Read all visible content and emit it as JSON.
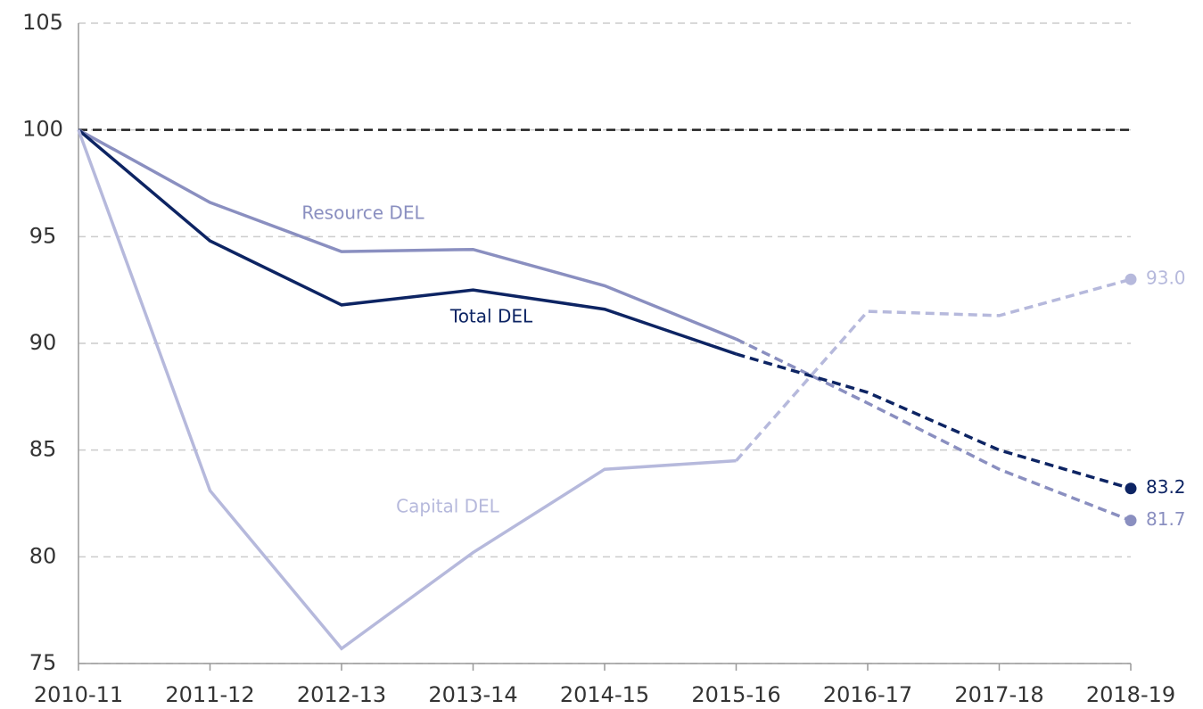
{
  "chart_data": {
    "type": "line",
    "categories": [
      "2010-11",
      "2011-12",
      "2012-13",
      "2013-14",
      "2014-15",
      "2015-16",
      "2016-17",
      "2017-18",
      "2018-19"
    ],
    "series": [
      {
        "name": "Resource DEL",
        "color": "#8a8fc0",
        "values": [
          100,
          96.6,
          94.3,
          94.4,
          92.7,
          90.2,
          87.2,
          84.1,
          81.7
        ],
        "value_labels": [
          null,
          null,
          null,
          null,
          null,
          null,
          null,
          null,
          "81.7"
        ]
      },
      {
        "name": "Total DEL",
        "color": "#0d2463",
        "values": [
          100,
          94.8,
          91.8,
          92.5,
          91.6,
          89.5,
          87.7,
          85.0,
          83.2
        ],
        "value_labels": [
          null,
          null,
          null,
          null,
          null,
          null,
          null,
          null,
          "83.2"
        ]
      },
      {
        "name": "Capital DEL",
        "color": "#b6b9dc",
        "values": [
          100,
          83.1,
          75.7,
          80.2,
          84.1,
          84.5,
          91.5,
          91.3,
          93.0
        ],
        "value_labels": [
          null,
          null,
          null,
          null,
          null,
          null,
          null,
          null,
          "93.0"
        ]
      }
    ],
    "dash_from": 5,
    "reference_line": 100,
    "ylim": [
      75,
      105
    ],
    "yticks": [
      75,
      80,
      85,
      90,
      95,
      100,
      105
    ],
    "grid": true
  }
}
